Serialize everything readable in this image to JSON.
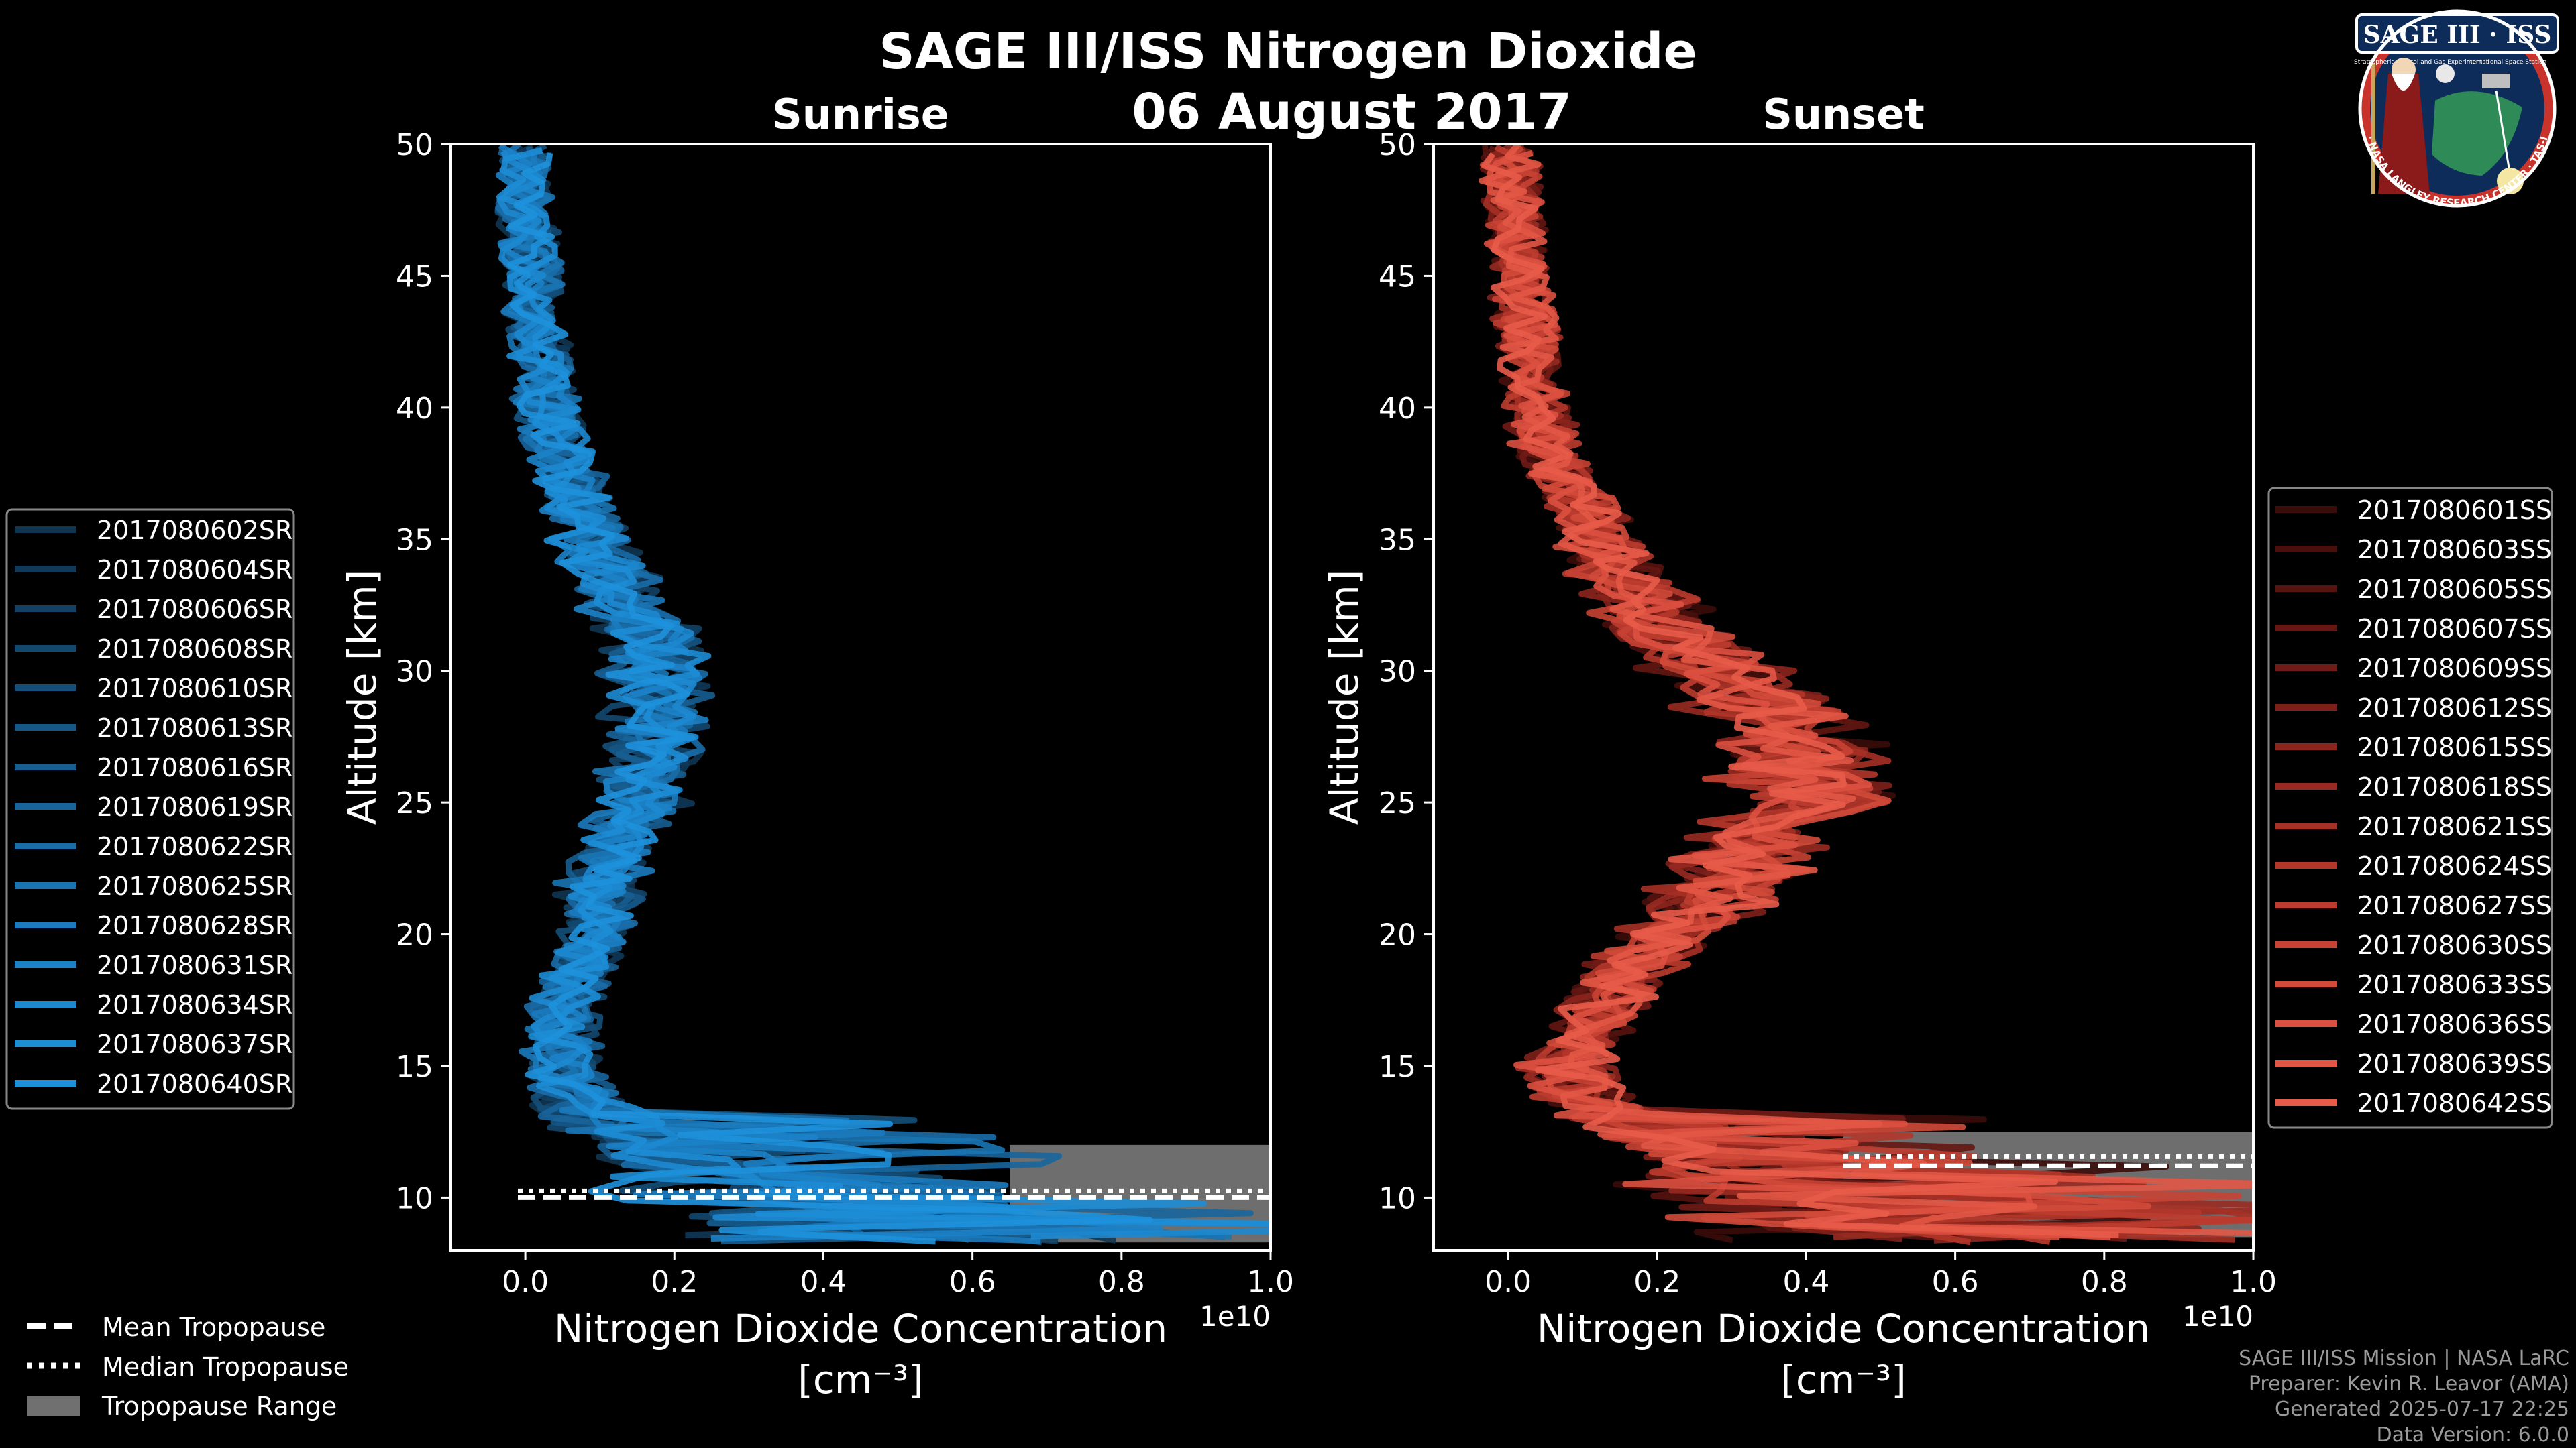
{
  "title": "SAGE III/ISS Nitrogen Dioxide",
  "date_label": "06 August 2017",
  "logo": {
    "name": "SAGE III · ISS",
    "subtitle": "Stratospheric Aerosol and Gas Experiment III",
    "station": "International Space Station",
    "ring_text": "BALL · NASA LANGLEY RESEARCH CENTER · TAS-I · ESA"
  },
  "credits": {
    "mission": "SAGE III/ISS Mission | NASA LaRC",
    "preparer": "Preparer: Kevin R. Leavor (AMA)",
    "generated": "Generated 2025-07-17 22:25",
    "version": "Data Version: 6.0.0"
  },
  "bottom_legend": {
    "mean": "Mean Tropopause",
    "median": "Median Tropopause",
    "range": "Tropopause Range"
  },
  "chart_data": [
    {
      "type": "line",
      "panel": "sunrise",
      "title": "Sunrise",
      "xlabel": "Nitrogen Dioxide Concentration",
      "xlabel_units": "[cm⁻³]",
      "x_offset_label": "1e10",
      "ylabel": "Altitude [km]",
      "xlim": [
        -0.1,
        1.0
      ],
      "ylim": [
        8,
        50
      ],
      "xticks": [
        0.0,
        0.2,
        0.4,
        0.6,
        0.8,
        1.0
      ],
      "xtick_labels": [
        "0.0",
        "0.2",
        "0.4",
        "0.6",
        "0.8",
        "1.0"
      ],
      "yticks": [
        10,
        15,
        20,
        25,
        30,
        35,
        40,
        45,
        50
      ],
      "ytick_labels": [
        "10",
        "15",
        "20",
        "25",
        "30",
        "35",
        "40",
        "45",
        "50"
      ],
      "legend_position": "outside-left",
      "base_color": "#1b8fd2",
      "series_names": [
        "2017080602SR",
        "2017080604SR",
        "2017080606SR",
        "2017080608SR",
        "2017080610SR",
        "2017080613SR",
        "2017080616SR",
        "2017080619SR",
        "2017080622SR",
        "2017080625SR",
        "2017080628SR",
        "2017080631SR",
        "2017080634SR",
        "2017080637SR",
        "2017080640SR"
      ],
      "series_colors": [
        "#0f3550",
        "#10395a",
        "#124165",
        "#13486f",
        "#144f7a",
        "#155786",
        "#175e91",
        "#18659c",
        "#196da8",
        "#1a74b3",
        "#1b7bbe",
        "#1c82c8",
        "#1d88d0",
        "#1d8dd6",
        "#1e91db"
      ],
      "mean_profile_altitude_km": [
        8.5,
        9,
        9.5,
        10,
        10.5,
        11,
        11.5,
        12,
        12.5,
        13,
        13.5,
        14,
        14.5,
        15,
        16,
        17,
        18,
        19,
        20,
        21,
        22,
        23,
        24,
        25,
        26,
        27,
        28,
        29,
        30,
        31,
        32,
        33,
        34,
        35,
        36,
        37,
        38,
        39,
        40,
        41,
        42,
        43,
        44,
        45,
        46,
        47,
        48,
        49,
        50
      ],
      "mean_profile_no2_1e10": [
        0.6,
        0.5,
        0.45,
        0.35,
        0.3,
        0.25,
        0.2,
        0.18,
        0.12,
        0.1,
        0.08,
        0.06,
        0.06,
        0.05,
        0.05,
        0.05,
        0.06,
        0.08,
        0.09,
        0.1,
        0.1,
        0.12,
        0.14,
        0.15,
        0.16,
        0.17,
        0.18,
        0.18,
        0.18,
        0.17,
        0.15,
        0.13,
        0.11,
        0.09,
        0.08,
        0.06,
        0.05,
        0.04,
        0.03,
        0.025,
        0.02,
        0.015,
        0.01,
        0.01,
        0.005,
        0.005,
        0.0,
        0.0,
        0.0
      ],
      "tropopause": {
        "mean_km": 10.0,
        "median_km": 10.0,
        "range_km": [
          8.3,
          12.0
        ],
        "mean_x_span": [
          -0.01,
          1.0
        ],
        "range_x_span": [
          0.65,
          1.0
        ]
      }
    },
    {
      "type": "line",
      "panel": "sunset",
      "title": "Sunset",
      "xlabel": "Nitrogen Dioxide Concentration",
      "xlabel_units": "[cm⁻³]",
      "x_offset_label": "1e10",
      "ylabel": "Altitude [km]",
      "xlim": [
        -0.1,
        1.0
      ],
      "ylim": [
        8,
        50
      ],
      "xticks": [
        0.0,
        0.2,
        0.4,
        0.6,
        0.8,
        1.0
      ],
      "xtick_labels": [
        "0.0",
        "0.2",
        "0.4",
        "0.6",
        "0.8",
        "1.0"
      ],
      "yticks": [
        10,
        15,
        20,
        25,
        30,
        35,
        40,
        45,
        50
      ],
      "ytick_labels": [
        "10",
        "15",
        "20",
        "25",
        "30",
        "35",
        "40",
        "45",
        "50"
      ],
      "legend_position": "outside-right",
      "base_color": "#e8564a",
      "series_names": [
        "2017080601SS",
        "2017080603SS",
        "2017080605SS",
        "2017080607SS",
        "2017080609SS",
        "2017080612SS",
        "2017080615SS",
        "2017080618SS",
        "2017080621SS",
        "2017080624SS",
        "2017080627SS",
        "2017080630SS",
        "2017080633SS",
        "2017080636SS",
        "2017080639SS",
        "2017080642SS"
      ],
      "series_colors": [
        "#3a0c0a",
        "#480f0d",
        "#561310",
        "#641713",
        "#711b16",
        "#7e2019",
        "#8b251d",
        "#982a21",
        "#a53025",
        "#b2362a",
        "#bd3c2f",
        "#c84334",
        "#d24a3a",
        "#db5040",
        "#e25645",
        "#e85b49"
      ],
      "mean_profile_altitude_km": [
        8.5,
        9,
        9.5,
        10,
        10.5,
        11,
        11.5,
        12,
        12.5,
        13,
        13.5,
        14,
        14.5,
        15,
        16,
        17,
        18,
        19,
        20,
        21,
        22,
        23,
        24,
        25,
        26,
        27,
        28,
        29,
        30,
        31,
        32,
        33,
        34,
        35,
        36,
        37,
        38,
        39,
        40,
        41,
        42,
        43,
        44,
        45,
        46,
        47,
        48,
        49,
        50
      ],
      "mean_profile_no2_1e10": [
        0.6,
        0.55,
        0.5,
        0.45,
        0.4,
        0.35,
        0.3,
        0.25,
        0.2,
        0.16,
        0.13,
        0.1,
        0.09,
        0.08,
        0.1,
        0.12,
        0.15,
        0.18,
        0.22,
        0.26,
        0.3,
        0.33,
        0.37,
        0.4,
        0.4,
        0.38,
        0.35,
        0.32,
        0.28,
        0.24,
        0.2,
        0.17,
        0.14,
        0.12,
        0.1,
        0.08,
        0.06,
        0.05,
        0.04,
        0.035,
        0.03,
        0.025,
        0.02,
        0.015,
        0.01,
        0.01,
        0.005,
        0.005,
        0.0
      ],
      "tropopause": {
        "mean_km": 11.2,
        "median_km": 11.3,
        "range_km": [
          8.5,
          12.5
        ],
        "mean_x_span": [
          0.45,
          1.0
        ],
        "range_x_span": [
          0.45,
          1.0
        ]
      }
    }
  ]
}
